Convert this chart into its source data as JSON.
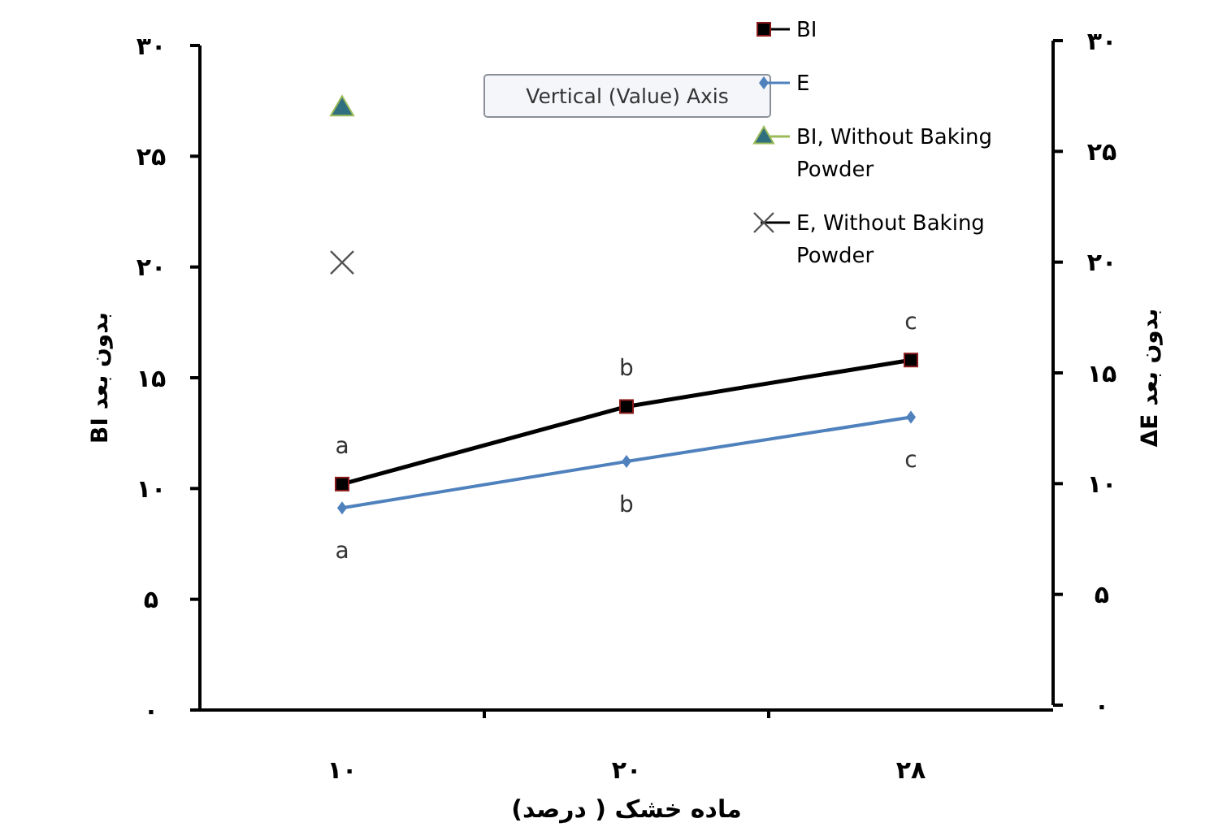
{
  "chart_data": {
    "type": "line",
    "xlabel": "ماده خشک ( درصد)",
    "ylabel": "BI بدون بعد",
    "y2label": "ΔE بدون بعد",
    "categories": [
      "۱۰",
      "۲۰",
      "۲۸"
    ],
    "ylim": [
      0,
      30
    ],
    "yticks": [
      {
        "value": 0,
        "label": "۰"
      },
      {
        "value": 5,
        "label": "۵"
      },
      {
        "value": 10,
        "label": "۱۰"
      },
      {
        "value": 15,
        "label": "۱۵"
      },
      {
        "value": 20,
        "label": "۲۰"
      },
      {
        "value": 25,
        "label": "۲۵"
      },
      {
        "value": 30,
        "label": "۳۰"
      }
    ],
    "y2lim": [
      0,
      30
    ],
    "y2ticks": [
      {
        "value": 0,
        "label": "۰"
      },
      {
        "value": 5,
        "label": "۵"
      },
      {
        "value": 10,
        "label": "۱۰"
      },
      {
        "value": 15,
        "label": "۱۵"
      },
      {
        "value": 20,
        "label": "۲۰"
      },
      {
        "value": 25,
        "label": "۲۵"
      },
      {
        "value": 30,
        "label": "۳۰"
      }
    ],
    "series": [
      {
        "name": "BI",
        "color": "#000000",
        "marker": "square",
        "values": [
          10.2,
          13.7,
          15.8
        ]
      },
      {
        "name": "E",
        "axis": "y2",
        "color": "#4f81bd",
        "marker": "diamond",
        "values": [
          8.9,
          11.0,
          13.0
        ]
      },
      {
        "name": "BI, Without Baking Powder",
        "type": "scatter",
        "color": "#2f6f7f",
        "marker": "triangle",
        "x": [
          "۱۰"
        ],
        "values": [
          27.2
        ]
      },
      {
        "name": "E, Without Baking Powder",
        "type": "scatter",
        "color": "#555555",
        "marker": "cross",
        "x": [
          "۱۰"
        ],
        "values": [
          20.2
        ]
      }
    ],
    "annotations": [
      {
        "text": "a",
        "x": "۱۰",
        "y": 10.2
      },
      {
        "text": "b",
        "x": "۲۰",
        "y": 13.7
      },
      {
        "text": "c",
        "x": "۲۸",
        "y": 15.8
      },
      {
        "text": "a",
        "x": "۱۰",
        "y": 8.9
      },
      {
        "text": "b",
        "x": "۲۰",
        "y": 11.0
      },
      {
        "text": "c",
        "x": "۲۸",
        "y": 13.0
      },
      "Vertical (Value) Axis"
    ],
    "legend": "top right",
    "grid": false
  }
}
